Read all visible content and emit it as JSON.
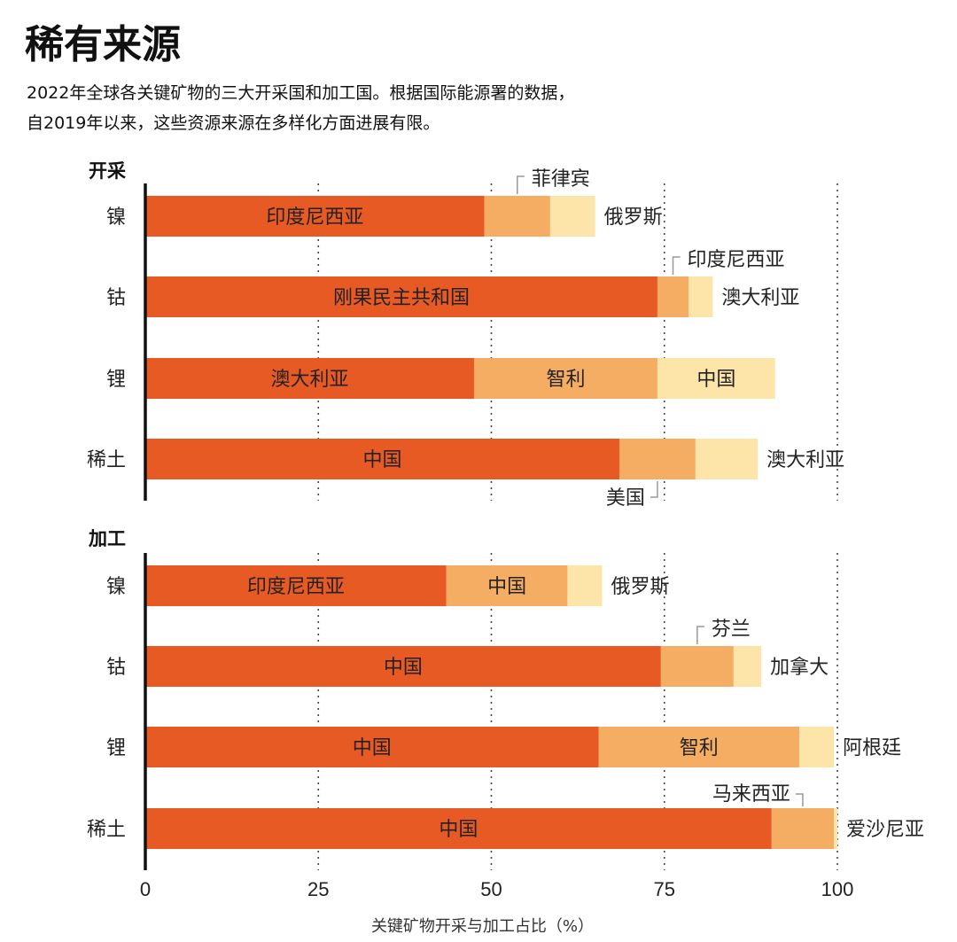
{
  "header": {
    "title": "稀有来源",
    "subtitle_line1": "2022年全球各关键矿物的三大开采国和加工国。根据国际能源署的数据，",
    "subtitle_line2": "自2019年以来，这些资源来源在多样化方面进展有限。"
  },
  "colors": {
    "first": "#e85a24",
    "second": "#f4ad62",
    "third": "#fde4a8"
  },
  "chart_data": {
    "type": "bar",
    "orientation": "horizontal",
    "stacked": true,
    "xlabel": "关键矿物开采与加工占比（%）",
    "xlim": [
      0,
      100
    ],
    "xticks": [
      "0",
      "25",
      "50",
      "75",
      "100"
    ],
    "grid": true,
    "panels": [
      {
        "name": "开采",
        "rows": [
          {
            "mineral": "镍",
            "segments": [
              {
                "country": "印度尼西亚",
                "value": 49,
                "label_pos": "inside"
              },
              {
                "country": "菲律宾",
                "value": 9.5,
                "label_pos": "above"
              },
              {
                "country": "俄罗斯",
                "value": 6.5,
                "label_pos": "right"
              }
            ]
          },
          {
            "mineral": "钴",
            "segments": [
              {
                "country": "刚果民主共和国",
                "value": 74,
                "label_pos": "inside"
              },
              {
                "country": "印度尼西亚",
                "value": 4.5,
                "label_pos": "above"
              },
              {
                "country": "澳大利亚",
                "value": 3.5,
                "label_pos": "right"
              }
            ]
          },
          {
            "mineral": "锂",
            "segments": [
              {
                "country": "澳大利亚",
                "value": 47.5,
                "label_pos": "inside"
              },
              {
                "country": "智利",
                "value": 26.5,
                "label_pos": "inside"
              },
              {
                "country": "中国",
                "value": 17,
                "label_pos": "inside"
              }
            ]
          },
          {
            "mineral": "稀土",
            "segments": [
              {
                "country": "中国",
                "value": 68.5,
                "label_pos": "inside"
              },
              {
                "country": "美国",
                "value": 11,
                "label_pos": "below"
              },
              {
                "country": "澳大利亚",
                "value": 9,
                "label_pos": "right"
              }
            ]
          }
        ]
      },
      {
        "name": "加工",
        "rows": [
          {
            "mineral": "镍",
            "segments": [
              {
                "country": "印度尼西亚",
                "value": 43.5,
                "label_pos": "inside"
              },
              {
                "country": "中国",
                "value": 17.5,
                "label_pos": "inside"
              },
              {
                "country": "俄罗斯",
                "value": 5,
                "label_pos": "right"
              }
            ]
          },
          {
            "mineral": "钴",
            "segments": [
              {
                "country": "中国",
                "value": 74.5,
                "label_pos": "inside"
              },
              {
                "country": "芬兰",
                "value": 10.5,
                "label_pos": "above"
              },
              {
                "country": "加拿大",
                "value": 4,
                "label_pos": "right"
              }
            ]
          },
          {
            "mineral": "锂",
            "segments": [
              {
                "country": "中国",
                "value": 65.5,
                "label_pos": "inside"
              },
              {
                "country": "智利",
                "value": 29,
                "label_pos": "inside"
              },
              {
                "country": "阿根廷",
                "value": 5,
                "label_pos": "right"
              }
            ]
          },
          {
            "mineral": "稀土",
            "segments": [
              {
                "country": "中国",
                "value": 90.5,
                "label_pos": "inside"
              },
              {
                "country": "马来西亚",
                "value": 9,
                "label_pos": "above"
              },
              {
                "country": "爱沙尼亚",
                "value": 0.5,
                "label_pos": "right"
              }
            ]
          }
        ]
      }
    ]
  }
}
